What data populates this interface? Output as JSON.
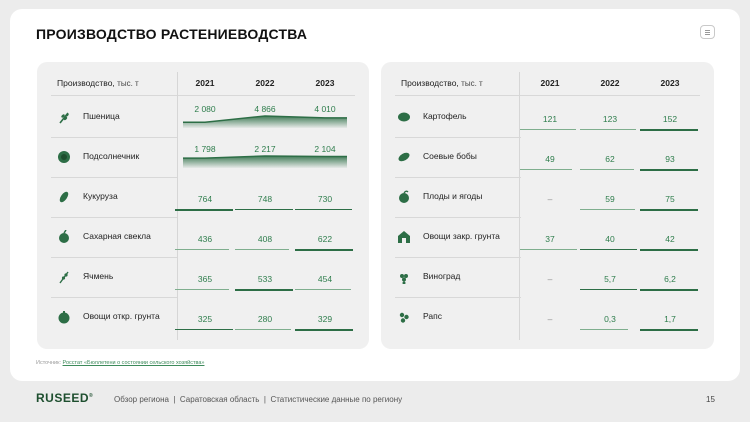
{
  "title": "ПРОИЗВОДСТВО РАСТЕНИЕВОДСТВА",
  "left_table": {
    "header_label": "Производство,",
    "header_unit": "тыс. т",
    "years": [
      "2021",
      "2022",
      "2023"
    ],
    "rows": [
      {
        "name": "Пшеница",
        "icon": "wheat-icon",
        "values": [
          "2 080",
          "4 866",
          "4 010"
        ],
        "nums": [
          2080,
          4866,
          4010
        ]
      },
      {
        "name": "Подсолнечник",
        "icon": "sunflower-icon",
        "values": [
          "1 798",
          "2 217",
          "2 104"
        ],
        "nums": [
          1798,
          2217,
          2104
        ]
      },
      {
        "name": "Кукуруза",
        "icon": "corn-icon",
        "values": [
          "764",
          "748",
          "730"
        ],
        "nums": [
          764,
          748,
          730
        ]
      },
      {
        "name": "Сахарная свекла",
        "icon": "beet-icon",
        "values": [
          "436",
          "408",
          "622"
        ],
        "nums": [
          436,
          408,
          622
        ]
      },
      {
        "name": "Ячмень",
        "icon": "barley-icon",
        "values": [
          "365",
          "533",
          "454"
        ],
        "nums": [
          365,
          533,
          454
        ]
      },
      {
        "name": "Овощи откр. грунта",
        "icon": "vegetable-icon",
        "values": [
          "325",
          "280",
          "329"
        ],
        "nums": [
          325,
          280,
          329
        ]
      }
    ]
  },
  "right_table": {
    "header_label": "Производство,",
    "header_unit": "тыс. т",
    "years": [
      "2021",
      "2022",
      "2023"
    ],
    "rows": [
      {
        "name": "Картофель",
        "icon": "potato-icon",
        "values": [
          "121",
          "123",
          "152"
        ],
        "nums": [
          121,
          123,
          152
        ]
      },
      {
        "name": "Соевые бобы",
        "icon": "soybean-icon",
        "values": [
          "49",
          "62",
          "93"
        ],
        "nums": [
          49,
          62,
          93
        ]
      },
      {
        "name": "Плоды и ягоды",
        "icon": "fruit-icon",
        "values": [
          "–",
          "59",
          "75"
        ],
        "nums": [
          null,
          59,
          75
        ]
      },
      {
        "name": "Овощи закр. грунта",
        "icon": "greenhouse-icon",
        "values": [
          "37",
          "40",
          "42"
        ],
        "nums": [
          37,
          40,
          42
        ]
      },
      {
        "name": "Виноград",
        "icon": "grape-icon",
        "values": [
          "–",
          "5,7",
          "6,2"
        ],
        "nums": [
          null,
          5.7,
          6.2
        ]
      },
      {
        "name": "Рапс",
        "icon": "rapeseed-icon",
        "values": [
          "–",
          "0,3",
          "1,7"
        ],
        "nums": [
          null,
          0.3,
          1.7
        ]
      }
    ]
  },
  "source": {
    "prefix": "Источник:",
    "link": "Росстат «Бюллетени о состоянии сельского хозяйства»"
  },
  "footer": {
    "logo": "RUSEED",
    "logo_mark": "®",
    "breadcrumb": [
      "Обзор региона",
      "Саратовская область",
      "Статистические данные по региону"
    ],
    "separator": "|",
    "page": "15"
  },
  "colors": {
    "accent": "#2d6e46",
    "value_text": "#2e7d4c",
    "card_bg": "#f0f0f0",
    "page_bg": "#ececec"
  }
}
